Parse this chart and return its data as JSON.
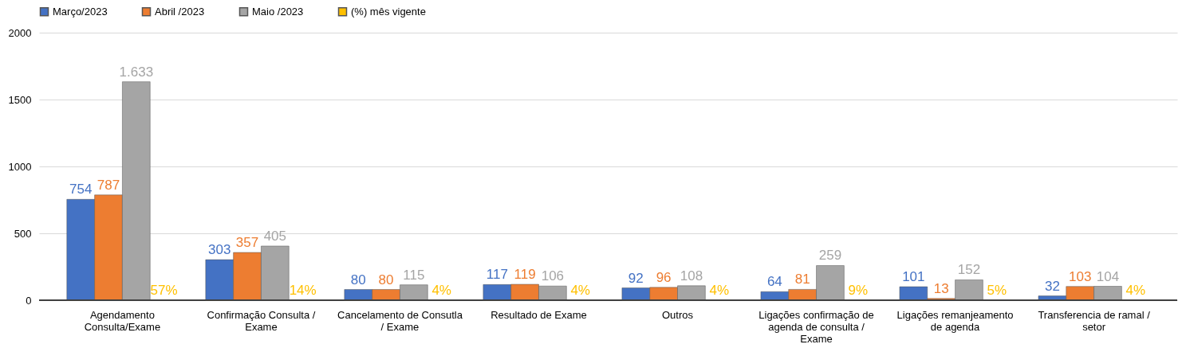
{
  "chart_data": {
    "type": "bar",
    "categories": [
      "Agendamento Consulta/Exame",
      "Confirmação Consulta / Exame",
      "Cancelamento de Consutla / Exame",
      "Resultado de Exame",
      "Outros",
      "Ligações confirmação de agenda de consulta / Exame",
      "Ligações remanjeamento de agenda",
      "Transferencia de ramal / setor"
    ],
    "series": [
      {
        "name": "Março/2023",
        "color": "#4472c4",
        "values": [
          754,
          303,
          80,
          117,
          92,
          64,
          101,
          32
        ],
        "value_labels": [
          "754",
          "303",
          "80",
          "117",
          "92",
          "64",
          "101",
          "32"
        ]
      },
      {
        "name": "Abril /2023",
        "color": "#ed7d31",
        "values": [
          787,
          357,
          80,
          119,
          96,
          81,
          13,
          103
        ],
        "value_labels": [
          "787",
          "357",
          "80",
          "119",
          "96",
          "81",
          "13",
          "103"
        ]
      },
      {
        "name": "Maio /2023",
        "color": "#a5a5a5",
        "values": [
          1633,
          405,
          115,
          106,
          108,
          259,
          152,
          104
        ],
        "value_labels": [
          "1.633",
          "405",
          "115",
          "106",
          "108",
          "259",
          "152",
          "104"
        ]
      },
      {
        "name": "(%) mês vigente",
        "color": "#ffc000",
        "values": [
          0.57,
          0.14,
          0.04,
          0.04,
          0.04,
          0.09,
          0.05,
          0.04
        ],
        "value_labels": [
          "57%",
          "14%",
          "4%",
          "4%",
          "4%",
          "9%",
          "5%",
          "4%"
        ]
      }
    ],
    "ylim": [
      0,
      2000
    ],
    "yticks": [
      0,
      500,
      1000,
      1500,
      2000
    ],
    "grid": "y",
    "legend": "top"
  }
}
